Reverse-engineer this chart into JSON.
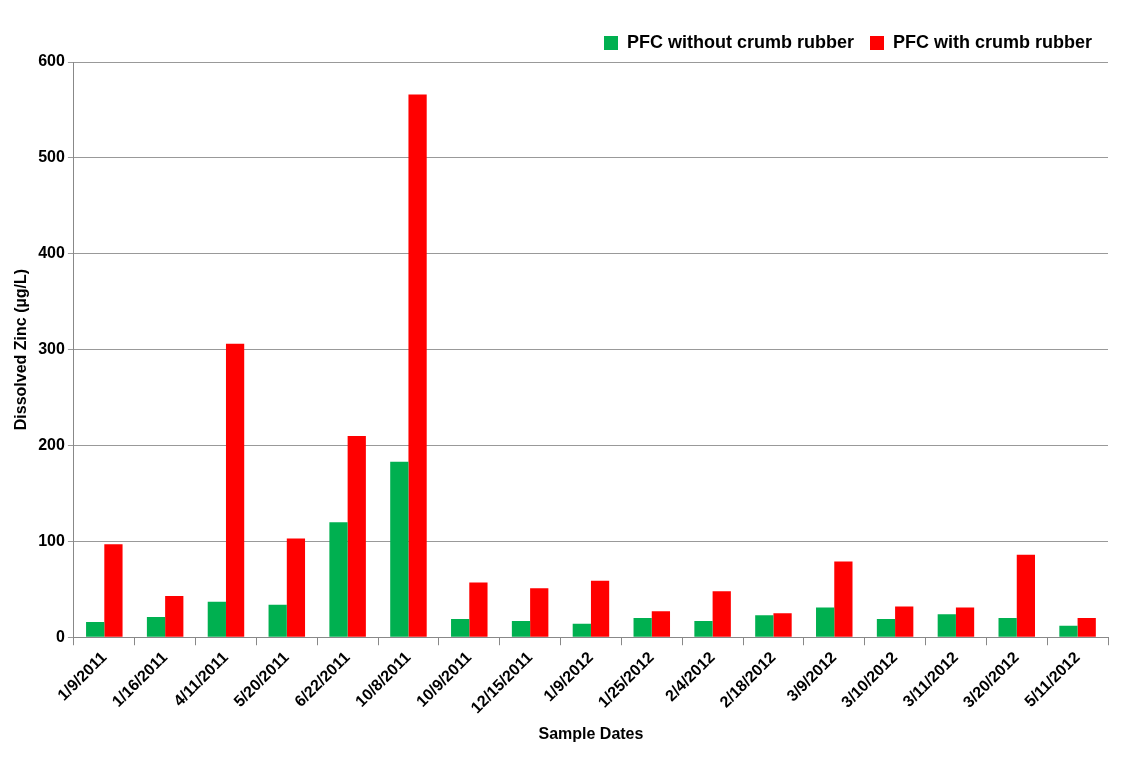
{
  "chart_data": {
    "type": "bar",
    "xlabel": "Sample Dates",
    "ylabel": "Dissolved Zinc (µg/L)",
    "categories": [
      "1/9/2011",
      "1/16/2011",
      "4/11/2011",
      "5/20/2011",
      "6/22/2011",
      "10/8/2011",
      "10/9/2011",
      "12/15/2011",
      "1/9/2012",
      "1/25/2012",
      "2/4/2012",
      "2/18/2012",
      "3/9/2012",
      "3/10/2012",
      "3/11/2012",
      "3/20/2012",
      "5/11/2012"
    ],
    "series": [
      {
        "name": "PFC without crumb rubber",
        "color": "#00b050",
        "values": [
          16,
          21,
          37,
          34,
          120,
          183,
          19,
          17,
          14,
          20,
          17,
          23,
          31,
          19,
          24,
          20,
          12
        ]
      },
      {
        "name": "PFC with crumb rubber",
        "color": "#ff0000",
        "values": [
          97,
          43,
          306,
          103,
          210,
          566,
          57,
          51,
          59,
          27,
          48,
          25,
          79,
          32,
          31,
          86,
          20
        ]
      }
    ],
    "ylim": [
      0,
      600
    ],
    "yticks": [
      0,
      100,
      200,
      300,
      400,
      500,
      600
    ],
    "grid": "y",
    "legend": "top right"
  }
}
